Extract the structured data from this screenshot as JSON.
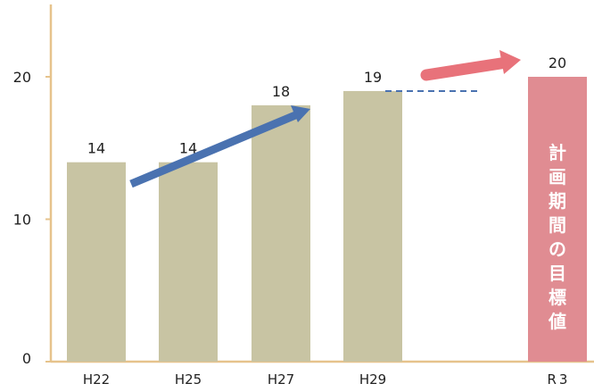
{
  "chart_data": {
    "type": "bar",
    "categories": [
      "H22",
      "H25",
      "H27",
      "H29",
      "R 3"
    ],
    "values": [
      14,
      14,
      18,
      19,
      20
    ],
    "ylim": [
      0,
      25
    ],
    "yticks": [
      0,
      10,
      20
    ],
    "title": "",
    "xlabel": "",
    "ylabel": "",
    "target_index": 4,
    "target_label": [
      "計",
      "画",
      "期",
      "間",
      "の",
      "目",
      "標",
      "値"
    ],
    "colors": {
      "bar": "#c8c4a3",
      "target_bar": "#e08c92",
      "axis": "#e6c38c",
      "trend_arrow": "#4a72b0",
      "target_arrow": "#e8727a",
      "dashed": "#4a72b0"
    },
    "grid": false
  }
}
